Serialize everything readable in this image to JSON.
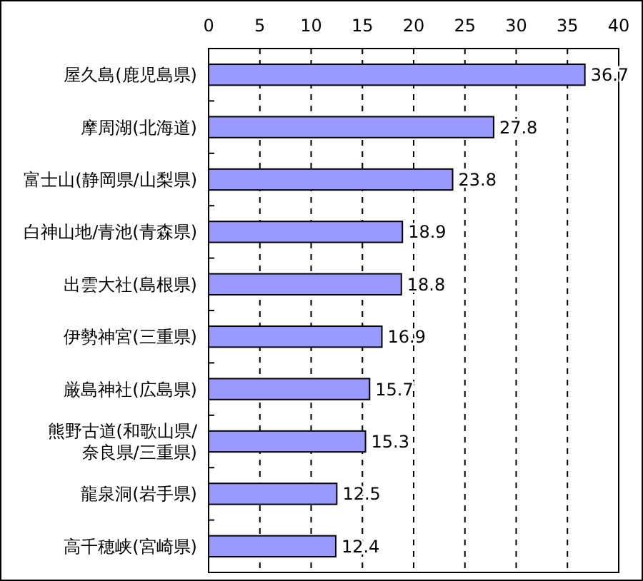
{
  "chart_data": {
    "type": "bar",
    "orientation": "horizontal",
    "categories": [
      "屋久島(鹿児島県)",
      "摩周湖(北海道)",
      "富士山(静岡県/山梨県)",
      "白神山地/青池(青森県)",
      "出雲大社(島根県)",
      "伊勢神宮(三重県)",
      "厳島神社(広島県)",
      "熊野古道(和歌山県/奈良県/三重県)",
      "龍泉洞(岩手県)",
      "高千穂峡(宮崎県)"
    ],
    "values": [
      36.7,
      27.8,
      23.8,
      18.9,
      18.8,
      16.9,
      15.7,
      15.3,
      12.5,
      12.4
    ],
    "color": "#9999ff",
    "xlim": [
      0,
      40
    ],
    "xticks": [
      0,
      5,
      10,
      15,
      20,
      25,
      30,
      35,
      40
    ],
    "grid": "x",
    "data_labels": true
  }
}
